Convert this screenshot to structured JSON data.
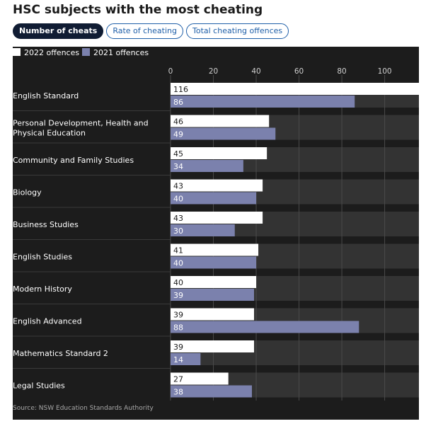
{
  "title": "HSC subjects with the most cheating",
  "tabs": [
    {
      "label": "Number of cheats",
      "active": true
    },
    {
      "label": "Rate of cheating",
      "active": false
    },
    {
      "label": "Total cheating offences",
      "active": false
    }
  ],
  "colors": {
    "series_2022": "#ffffff",
    "series_2021": "#7b81ad",
    "panel_bg": "#1c1c1c",
    "track_bg": "#333333",
    "active_tab_bg": "#101c33",
    "tab_accent": "#1f5fa8"
  },
  "source": "Source: NSW Education Standards Authority",
  "chart_data": {
    "type": "bar",
    "orientation": "horizontal",
    "categories": [
      "English Standard",
      "Personal Development, Health and Physical Education",
      "Community and Family Studies",
      "Biology",
      "Business Studies",
      "English Studies",
      "Modern History",
      "English Advanced",
      "Mathematics Standard 2",
      "Legal Studies"
    ],
    "series": [
      {
        "name": "2022 offences",
        "values": [
          116,
          46,
          45,
          43,
          43,
          41,
          40,
          39,
          39,
          27
        ]
      },
      {
        "name": "2021 offences",
        "values": [
          86,
          49,
          34,
          40,
          30,
          40,
          39,
          88,
          14,
          38
        ]
      }
    ],
    "x_ticks": [
      0,
      20,
      40,
      60,
      80,
      100
    ],
    "xlim": [
      0,
      116
    ],
    "grid": true,
    "legend": "top-left",
    "data_labels": true
  }
}
